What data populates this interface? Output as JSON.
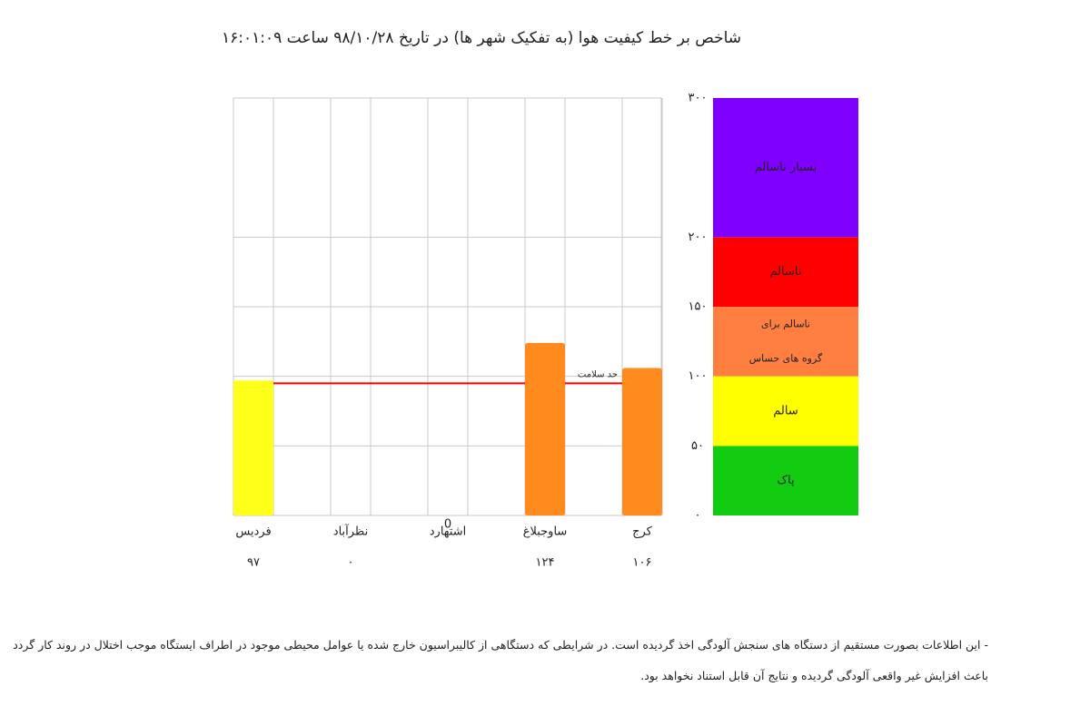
{
  "chart_data": {
    "type": "bar",
    "title": "شاخص بر خط کیفیت هوا (به تفکیک شهر ها) در تاریخ ۹۸/۱۰/۲۸   ساعت ۱۶:۰۱:۰۹",
    "categories": [
      "فردیس",
      "نظرآباد",
      "اشتهارد",
      "ساوجبلاغ",
      "کرج"
    ],
    "values": [
      97,
      0,
      null,
      124,
      106
    ],
    "value_labels": [
      "۹۷",
      "۰",
      null,
      "۱۲۴",
      "۱۰۶"
    ],
    "colors": [
      "#ffff1a",
      null,
      null,
      "#ff8a1e",
      "#ff8a1e"
    ],
    "ylim": [
      0,
      300
    ],
    "yticks": [
      {
        "value": 0,
        "label": "۰"
      },
      {
        "value": 50,
        "label": "۵۰"
      },
      {
        "value": 100,
        "label": "۱۰۰"
      },
      {
        "value": 150,
        "label": "۱۵۰"
      },
      {
        "value": 200,
        "label": "۲۰۰"
      },
      {
        "value": 300,
        "label": "۳۰۰"
      }
    ],
    "grid": true,
    "threshold": {
      "value": 95,
      "label": "حد سلامت",
      "color": "#ff0000"
    },
    "annotation": "0",
    "bands": [
      {
        "from": 0,
        "to": 50,
        "color": "#11cc11",
        "lines": [
          "پاک"
        ]
      },
      {
        "from": 50,
        "to": 100,
        "color": "#ffff00",
        "lines": [
          "سالم"
        ]
      },
      {
        "from": 100,
        "to": 150,
        "color": "#ff7f40",
        "lines": [
          "ناسالم برای",
          "گروه های حساس"
        ]
      },
      {
        "from": 150,
        "to": 200,
        "color": "#ff0000",
        "lines": [
          "ناسالم"
        ]
      },
      {
        "from": 200,
        "to": 300,
        "color": "#7f00ff",
        "lines": [
          "بسیار ناسالم"
        ]
      }
    ]
  },
  "note": {
    "lines": [
      "- این اطلاعات بصورت مستقیم از دستگاه های سنجش آلودگی اخذ گردیده است. در شرایطی که دستگاهی از کالیبراسیون خارج شده یا عوامل محیطی موجود در اطراف ایستگاه موجب اختلال در روند کار گردد",
      "باعث افزایش غیر واقعی آلودگی گردیده و نتایج آن قابل استناد نخواهد بود."
    ]
  }
}
